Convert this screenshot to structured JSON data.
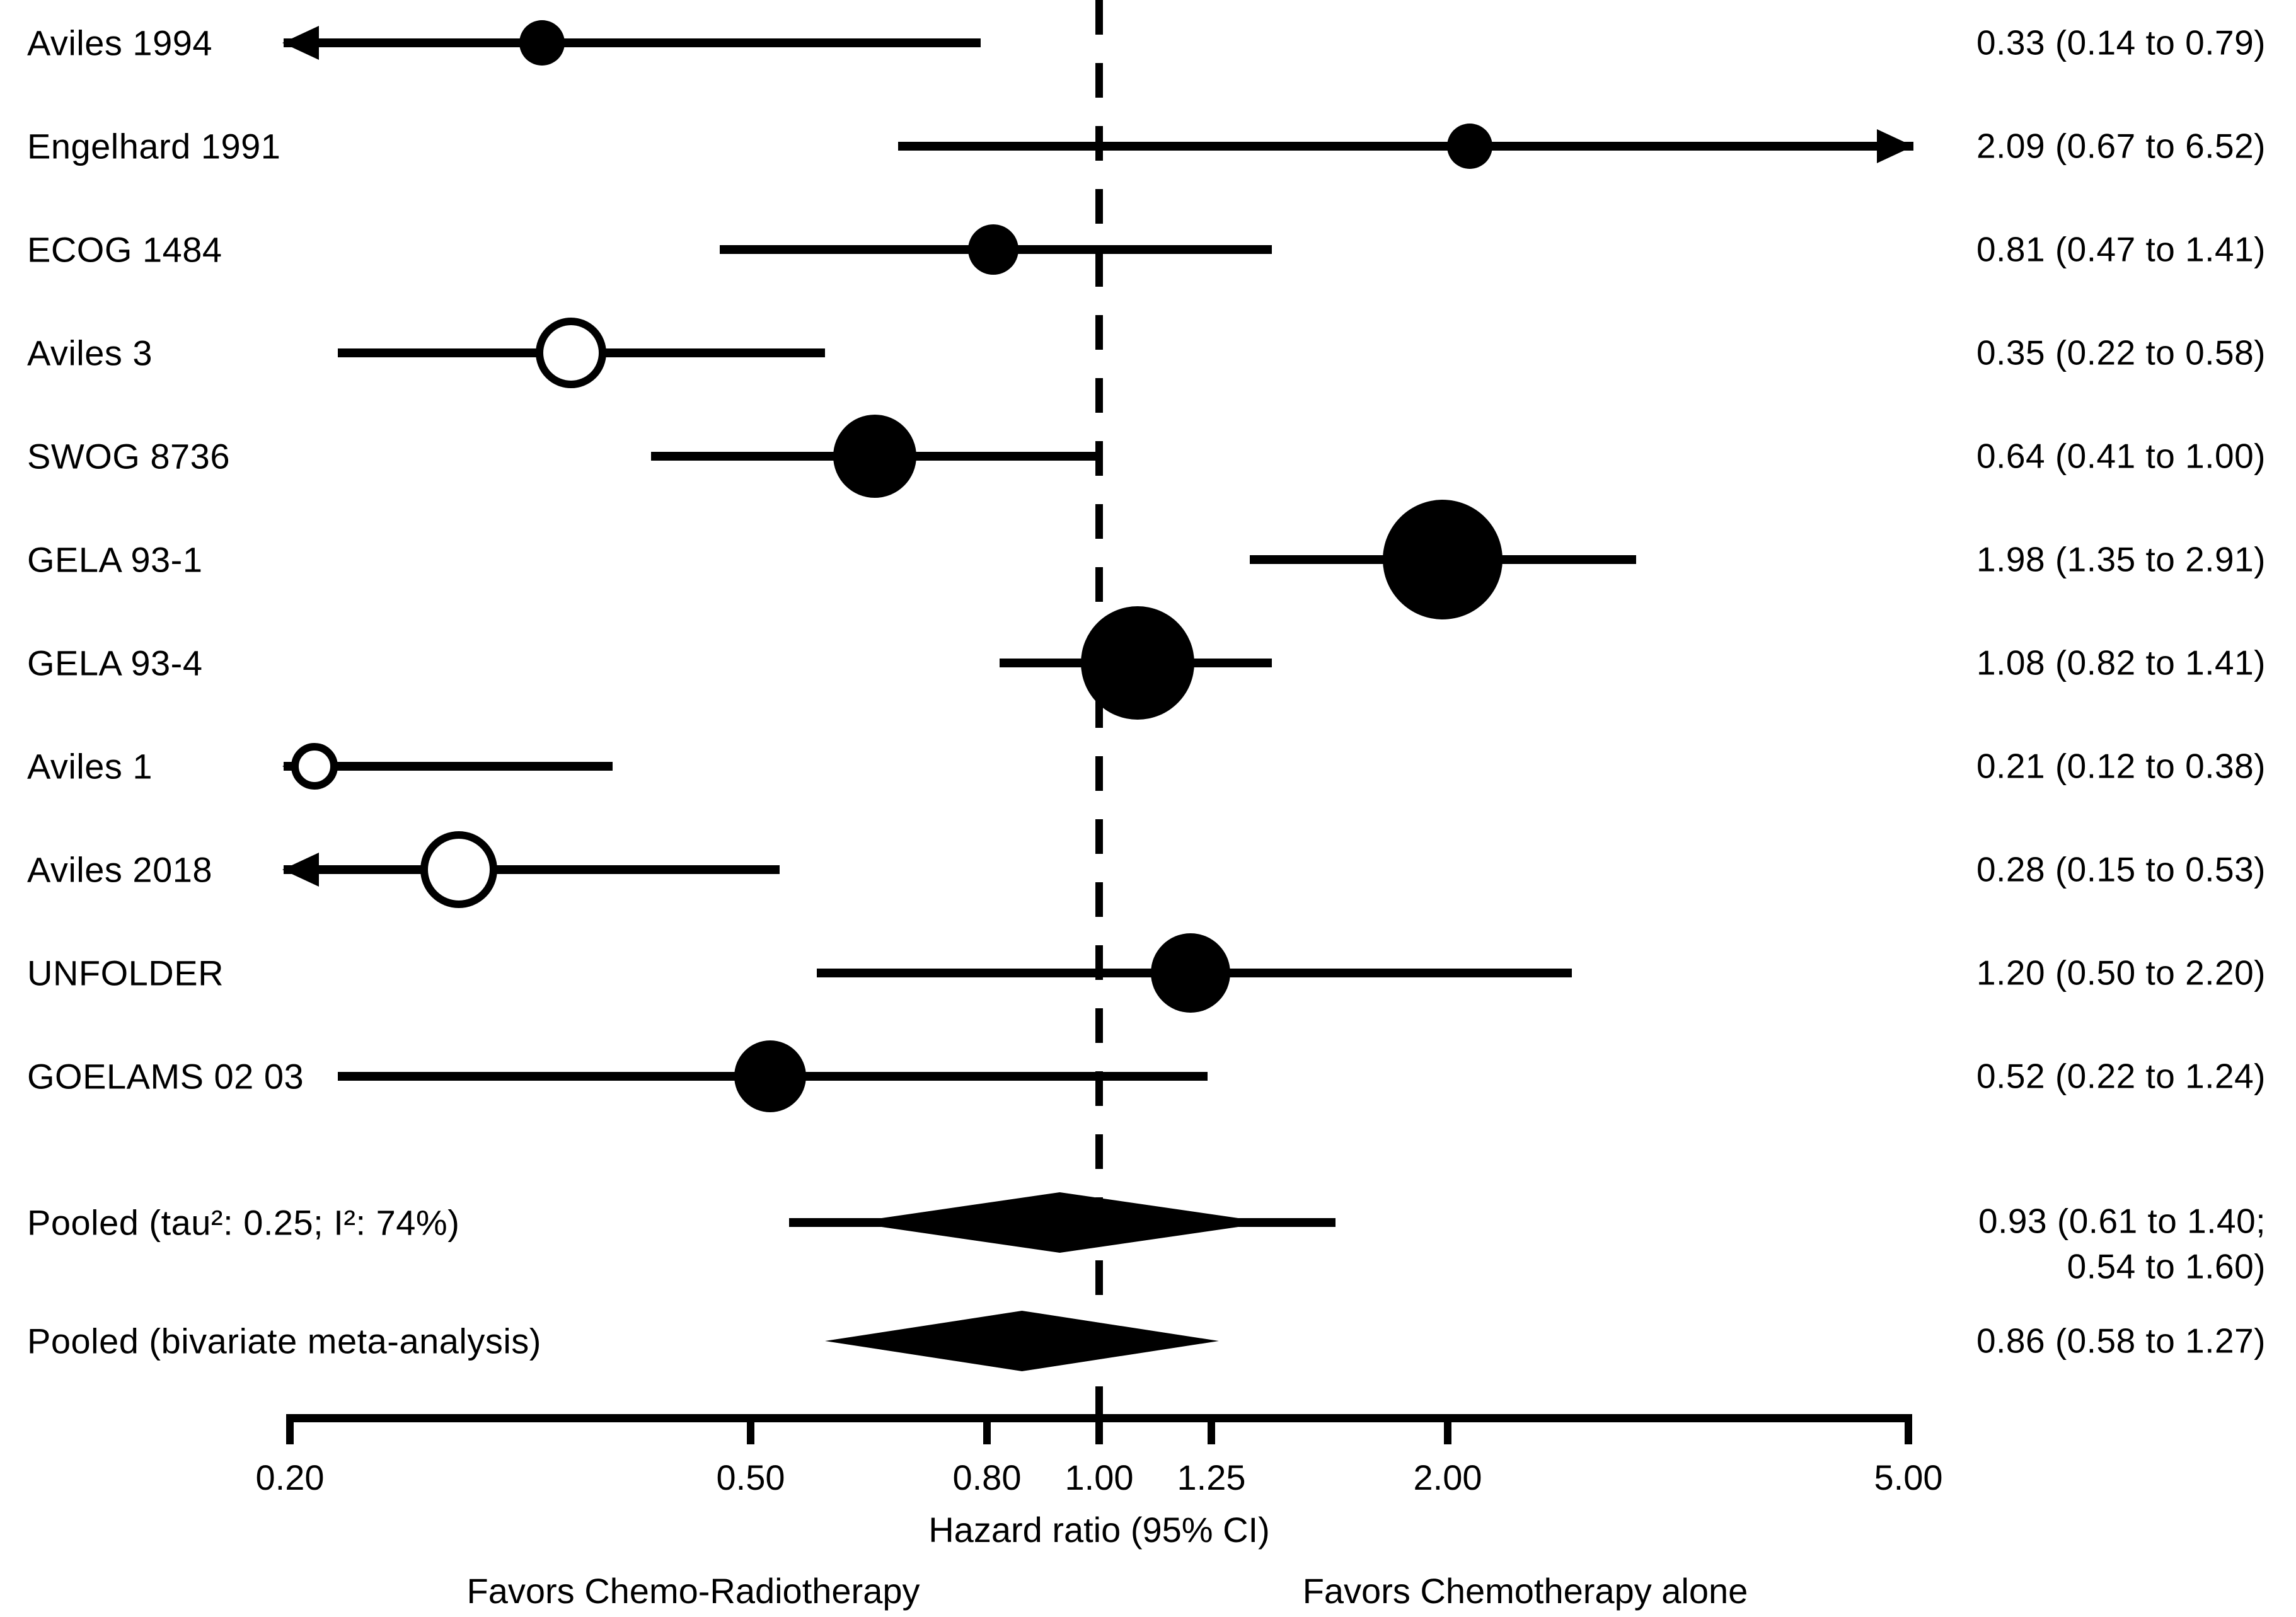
{
  "chart_data": {
    "type": "forest",
    "title": "",
    "x_axis": {
      "scale": "log",
      "min": 0.2,
      "max": 5.0,
      "ticks": [
        0.2,
        0.5,
        0.8,
        1.0,
        1.25,
        2.0,
        5.0
      ],
      "tick_labels": [
        "0.20",
        "0.50",
        "0.80",
        "1.00",
        "1.25",
        "2.00",
        "5.00"
      ],
      "label": "Hazard ratio (95% CI)",
      "reference_line": 1.0
    },
    "footer": {
      "favors_left": "Favors Chemo-Radiotherapy",
      "favors_right": "Favors Chemotherapy alone"
    },
    "studies": [
      {
        "label": "Aviles 1994",
        "hr": 0.33,
        "ci_low": 0.14,
        "ci_high": 0.79,
        "value_text": "0.33 (0.14 to 0.79)",
        "marker": "filled",
        "marker_px": 72
      },
      {
        "label": "Engelhard 1991",
        "hr": 2.09,
        "ci_low": 0.67,
        "ci_high": 6.52,
        "value_text": "2.09 (0.67 to 6.52)",
        "marker": "filled",
        "marker_px": 72
      },
      {
        "label": "ECOG 1484",
        "hr": 0.81,
        "ci_low": 0.47,
        "ci_high": 1.41,
        "value_text": "0.81 (0.47 to 1.41)",
        "marker": "filled",
        "marker_px": 80
      },
      {
        "label": "Aviles 3",
        "hr": 0.35,
        "ci_low": 0.22,
        "ci_high": 0.58,
        "value_text": "0.35 (0.22 to 0.58)",
        "marker": "open",
        "marker_px": 112
      },
      {
        "label": "SWOG 8736",
        "hr": 0.64,
        "ci_low": 0.41,
        "ci_high": 1.0,
        "value_text": "0.64 (0.41 to 1.00)",
        "marker": "filled",
        "marker_px": 132
      },
      {
        "label": "GELA 93-1",
        "hr": 1.98,
        "ci_low": 1.35,
        "ci_high": 2.91,
        "value_text": "1.98 (1.35 to 2.91)",
        "marker": "filled",
        "marker_px": 190
      },
      {
        "label": "GELA 93-4",
        "hr": 1.08,
        "ci_low": 0.82,
        "ci_high": 1.41,
        "value_text": "1.08 (0.82 to 1.41)",
        "marker": "filled",
        "marker_px": 180
      },
      {
        "label": "Aviles 1",
        "hr": 0.21,
        "ci_low": 0.12,
        "ci_high": 0.38,
        "value_text": "0.21 (0.12 to 0.38)",
        "marker": "open",
        "marker_px": 74
      },
      {
        "label": "Aviles 2018",
        "hr": 0.28,
        "ci_low": 0.15,
        "ci_high": 0.53,
        "value_text": "0.28 (0.15 to 0.53)",
        "marker": "open",
        "marker_px": 122
      },
      {
        "label": "UNFOLDER",
        "hr": 1.2,
        "ci_low": 0.5,
        "ci_high": 2.2,
        "plot_ci_low": 0.57,
        "plot_ci_high": 2.56,
        "value_text": "1.20 (0.50 to 2.20)",
        "marker": "filled",
        "marker_px": 126
      },
      {
        "label": "GOELAMS 02 03",
        "hr": 0.52,
        "ci_low": 0.22,
        "ci_high": 1.24,
        "value_text": "0.52 (0.22 to 1.24)",
        "marker": "filled",
        "marker_px": 114
      }
    ],
    "pooled": [
      {
        "label": "Pooled (tau²: 0.25; I²: 74%)",
        "hr": 0.93,
        "ci_low": 0.61,
        "ci_high": 1.4,
        "pred_low": 0.54,
        "pred_high": 1.6,
        "value_lines": [
          "0.93 (0.61 to 1.40;",
          "0.54 to 1.60)"
        ]
      },
      {
        "label": "Pooled (bivariate meta-analysis)",
        "hr": 0.86,
        "ci_low": 0.58,
        "ci_high": 1.27,
        "value_lines": [
          "0.86 (0.58 to 1.27)"
        ]
      }
    ],
    "colors": {
      "foreground": "#000000",
      "background": "#ffffff"
    }
  }
}
